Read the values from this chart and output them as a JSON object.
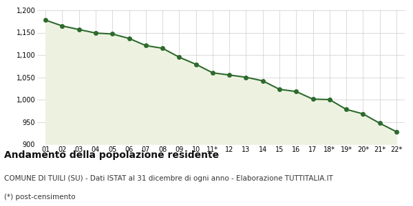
{
  "x_labels": [
    "01",
    "02",
    "03",
    "04",
    "05",
    "06",
    "07",
    "08",
    "09",
    "10",
    "11*",
    "12",
    "13",
    "14",
    "15",
    "16",
    "17",
    "18*",
    "19*",
    "20*",
    "21*",
    "22*"
  ],
  "values": [
    1178,
    1165,
    1157,
    1149,
    1147,
    1137,
    1121,
    1115,
    1095,
    1079,
    1060,
    1055,
    1050,
    1042,
    1023,
    1018,
    1001,
    1000,
    978,
    968,
    947,
    928
  ],
  "ylim": [
    900,
    1200
  ],
  "yticks": [
    900,
    950,
    1000,
    1050,
    1100,
    1150,
    1200
  ],
  "line_color": "#2d6a2d",
  "fill_color": "#edf2e0",
  "marker": "o",
  "marker_size": 4,
  "line_width": 1.5,
  "grid_color": "#cccccc",
  "bg_color": "#ffffff",
  "plot_bg_color": "#ffffff",
  "title": "Andamento della popolazione residente",
  "subtitle": "COMUNE DI TUILI (SU) - Dati ISTAT al 31 dicembre di ogni anno - Elaborazione TUTTITALIA.IT",
  "footnote": "(*) post-censimento",
  "title_fontsize": 10,
  "subtitle_fontsize": 7.5,
  "footnote_fontsize": 7.5,
  "tick_fontsize": 7,
  "y_tick_fontsize": 7
}
